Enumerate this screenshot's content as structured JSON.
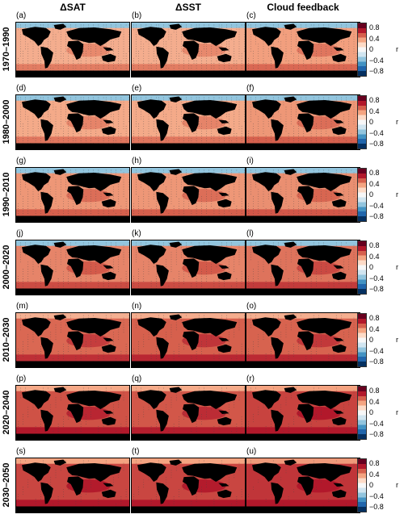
{
  "columns": [
    "ΔSAT",
    "ΔSST",
    "Cloud feedback"
  ],
  "periods": [
    "1970–1990",
    "1980–2000",
    "1990–2010",
    "2000–2020",
    "2010–2030",
    "2020–2040",
    "2030–2050"
  ],
  "panel_labels": [
    "(a)",
    "(b)",
    "(c)",
    "(d)",
    "(e)",
    "(f)",
    "(g)",
    "(h)",
    "(i)",
    "(j)",
    "(k)",
    "(l)",
    "(m)",
    "(n)",
    "(o)",
    "(p)",
    "(q)",
    "(r)",
    "(s)",
    "(t)",
    "(u)"
  ],
  "colorbar": {
    "ticks": [
      "0.8",
      "0.4",
      "0",
      "−0.4",
      "−0.8"
    ],
    "label": "r",
    "colors": [
      "#67001f",
      "#b2182b",
      "#d6604d",
      "#f4a582",
      "#fddbc7",
      "#f7f7f7",
      "#d1e5f0",
      "#92c5de",
      "#4393c3",
      "#2166ac",
      "#053061"
    ]
  },
  "ocean_level": [
    [
      0.45,
      0.45,
      0.52
    ],
    [
      0.47,
      0.47,
      0.55
    ],
    [
      0.55,
      0.55,
      0.58
    ],
    [
      0.62,
      0.62,
      0.68
    ],
    [
      0.72,
      0.75,
      0.74
    ],
    [
      0.8,
      0.78,
      0.85
    ],
    [
      0.84,
      0.84,
      0.9
    ]
  ]
}
